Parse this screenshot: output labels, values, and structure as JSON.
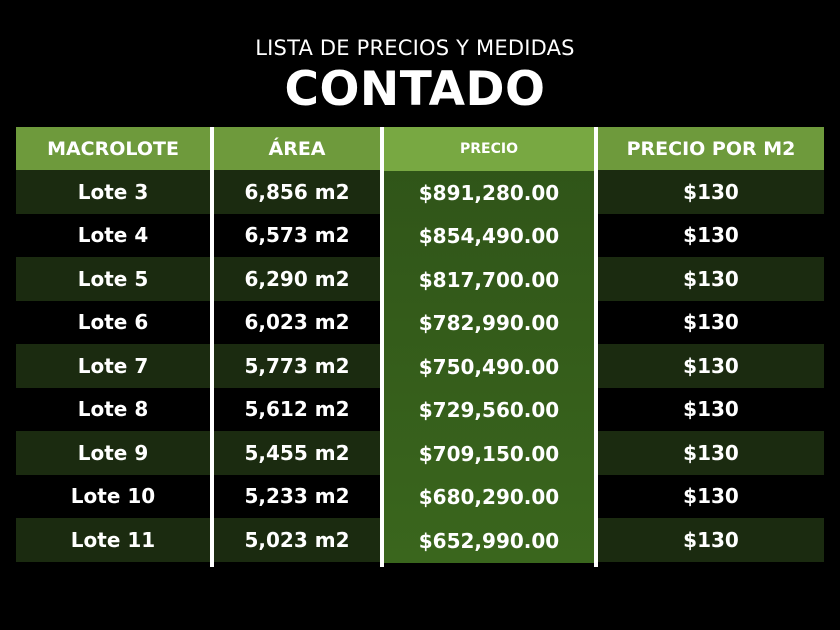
{
  "header": {
    "subtitle": "LISTA DE PRECIOS Y MEDIDAS",
    "title": "CONTADO"
  },
  "table": {
    "headers": {
      "macrolote": "MACROLOTE",
      "area": "ÁREA",
      "precio": "PRECIO",
      "precio_m2": "PRECIO POR M2"
    },
    "rows": [
      {
        "lote": "Lote 3",
        "area": "6,856 m2",
        "precio": "$891,280.00",
        "precio_m2": "$130"
      },
      {
        "lote": "Lote 4",
        "area": "6,573 m2",
        "precio": "$854,490.00",
        "precio_m2": "$130"
      },
      {
        "lote": "Lote 5",
        "area": "6,290 m2",
        "precio": "$817,700.00",
        "precio_m2": "$130"
      },
      {
        "lote": "Lote 6",
        "area": "6,023 m2",
        "precio": "$782,990.00",
        "precio_m2": "$130"
      },
      {
        "lote": "Lote 7",
        "area": "5,773 m2",
        "precio": "$750,490.00",
        "precio_m2": "$130"
      },
      {
        "lote": "Lote 8",
        "area": "5,612 m2",
        "precio": "$729,560.00",
        "precio_m2": "$130"
      },
      {
        "lote": "Lote 9",
        "area": "5,455 m2",
        "precio": "$709,150.00",
        "precio_m2": "$130"
      },
      {
        "lote": "Lote 10",
        "area": "5,233 m2",
        "precio": "$680,290.00",
        "precio_m2": "$130"
      },
      {
        "lote": "Lote 11",
        "area": "5,023 m2",
        "precio": "$652,990.00",
        "precio_m2": "$130"
      }
    ]
  },
  "colors": {
    "background": "#000000",
    "header_green": "#6e9a3c",
    "precio_column": "#3a661d",
    "stripe": "#1b2b10",
    "text": "#ffffff"
  }
}
